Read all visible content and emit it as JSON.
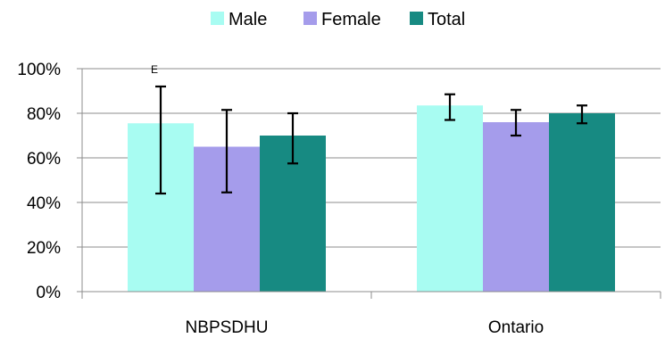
{
  "chart_data": {
    "type": "bar",
    "categories": [
      "NBPSDHU",
      "Ontario"
    ],
    "series": [
      {
        "name": "Male",
        "color": "#a8fcf2",
        "values": [
          75.5,
          83.5
        ],
        "ci_low": [
          44,
          77
        ],
        "ci_high": [
          92,
          88.5
        ],
        "flags": [
          "E",
          ""
        ]
      },
      {
        "name": "Female",
        "color": "#a59ceb",
        "values": [
          65,
          76
        ],
        "ci_low": [
          44.5,
          70
        ],
        "ci_high": [
          81.5,
          81.5
        ],
        "flags": [
          "",
          ""
        ]
      },
      {
        "name": "Total",
        "color": "#178a82",
        "values": [
          70,
          80
        ],
        "ci_low": [
          57.5,
          75.5
        ],
        "ci_high": [
          80,
          83.5
        ],
        "flags": [
          "",
          ""
        ]
      }
    ],
    "yticks": [
      "0%",
      "20%",
      "40%",
      "60%",
      "80%",
      "100%"
    ],
    "ylim": [
      0,
      100
    ],
    "grid": true,
    "legend": "top",
    "title": "",
    "xlabel": "",
    "ylabel": ""
  }
}
